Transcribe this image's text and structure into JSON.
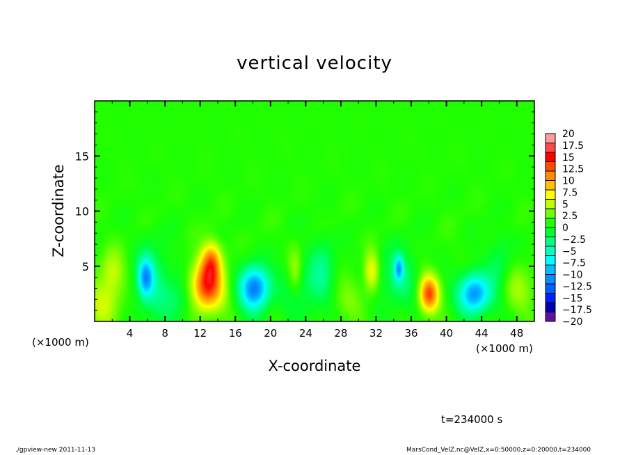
{
  "chart_data": {
    "type": "heatmap",
    "title": "vertical velocity",
    "xlabel": "X-coordinate",
    "ylabel": "Z-coordinate",
    "x_unit_label": "(×1000 m)",
    "xlim": [
      0,
      50
    ],
    "ylim": [
      0,
      20
    ],
    "xticks": [
      4,
      8,
      12,
      16,
      20,
      24,
      28,
      32,
      36,
      40,
      44,
      48
    ],
    "xticks_minor_step": 2,
    "yticks": [
      5,
      10,
      15
    ],
    "yticks_minor_step": 1,
    "colorbar": {
      "levels": [
        -20,
        -18,
        -16,
        -14,
        -12,
        -10,
        -8,
        -6,
        -4,
        -2,
        0,
        2,
        4,
        6,
        8,
        10,
        12,
        14,
        16,
        18,
        20
      ],
      "tick_labels": [
        "-20",
        "-17.5",
        "-15",
        "-12.5",
        "-10",
        "-7.5",
        "-5",
        "-2.5",
        "0",
        "2.5",
        "5",
        "7.5",
        "10",
        "12.5",
        "15",
        "17.5",
        "20"
      ],
      "colors": [
        "#6010a0",
        "#0000b0",
        "#0020ff",
        "#0060ff",
        "#0090ff",
        "#00c0ff",
        "#00ffff",
        "#00ffc0",
        "#00ff80",
        "#00ff30",
        "#20ff00",
        "#70ff00",
        "#bfff00",
        "#ffff00",
        "#ffbf00",
        "#ff8c00",
        "#ff4a00",
        "#ff0000",
        "#ff4848",
        "#ff9a9a"
      ]
    },
    "background_value": 1,
    "features": [
      {
        "x": 12.8,
        "z": 3.2,
        "value": 13,
        "sx": 1.3,
        "sz": 1.6
      },
      {
        "x": 13.3,
        "z": 5.6,
        "value": 8,
        "sx": 0.8,
        "sz": 1.2
      },
      {
        "x": 18.2,
        "z": 3.0,
        "value": -13,
        "sx": 1.2,
        "sz": 1.4
      },
      {
        "x": 5.8,
        "z": 4.0,
        "value": -9,
        "sx": 0.6,
        "sz": 1.2
      },
      {
        "x": 6.5,
        "z": 3.5,
        "value": -4,
        "sx": 1.5,
        "sz": 2.5
      },
      {
        "x": 38.0,
        "z": 2.5,
        "value": 12,
        "sx": 0.8,
        "sz": 1.2
      },
      {
        "x": 43.2,
        "z": 2.5,
        "value": -12,
        "sx": 1.3,
        "sz": 1.3
      },
      {
        "x": 34.6,
        "z": 4.8,
        "value": -8,
        "sx": 0.35,
        "sz": 0.8
      },
      {
        "x": 34.5,
        "z": 4.0,
        "value": -4,
        "sx": 1.5,
        "sz": 2.0
      },
      {
        "x": 31.5,
        "z": 4.5,
        "value": 6,
        "sx": 0.6,
        "sz": 1.3
      },
      {
        "x": 2.0,
        "z": 4.5,
        "value": 4,
        "sx": 1.0,
        "sz": 1.5
      },
      {
        "x": 1.0,
        "z": 1.5,
        "value": 4,
        "sx": 1.5,
        "sz": 1.5
      },
      {
        "x": 22.8,
        "z": 4.5,
        "value": 4,
        "sx": 0.6,
        "sz": 1.5
      },
      {
        "x": 24.0,
        "z": 3.0,
        "value": -3,
        "sx": 2.0,
        "sz": 2.0
      },
      {
        "x": 26.0,
        "z": 5.0,
        "value": -3,
        "sx": 1.0,
        "sz": 2.0
      },
      {
        "x": 48.0,
        "z": 3.0,
        "value": 3,
        "sx": 1.5,
        "sz": 1.5
      },
      {
        "x": 46.0,
        "z": 5.0,
        "value": -3,
        "sx": 1.0,
        "sz": 2.0
      },
      {
        "x": 9.5,
        "z": 2.0,
        "value": -3,
        "sx": 1.2,
        "sz": 1.5
      },
      {
        "x": 28.5,
        "z": 2.0,
        "value": 2,
        "sx": 1.5,
        "sz": 1.5
      }
    ]
  },
  "annotations": {
    "time": "t=234000 s",
    "footer_left": "./gpview-new  2011-11-13",
    "footer_right": "MarsCond_VelZ.nc@VelZ,x=0:50000,z=0:20000,t=234000"
  }
}
